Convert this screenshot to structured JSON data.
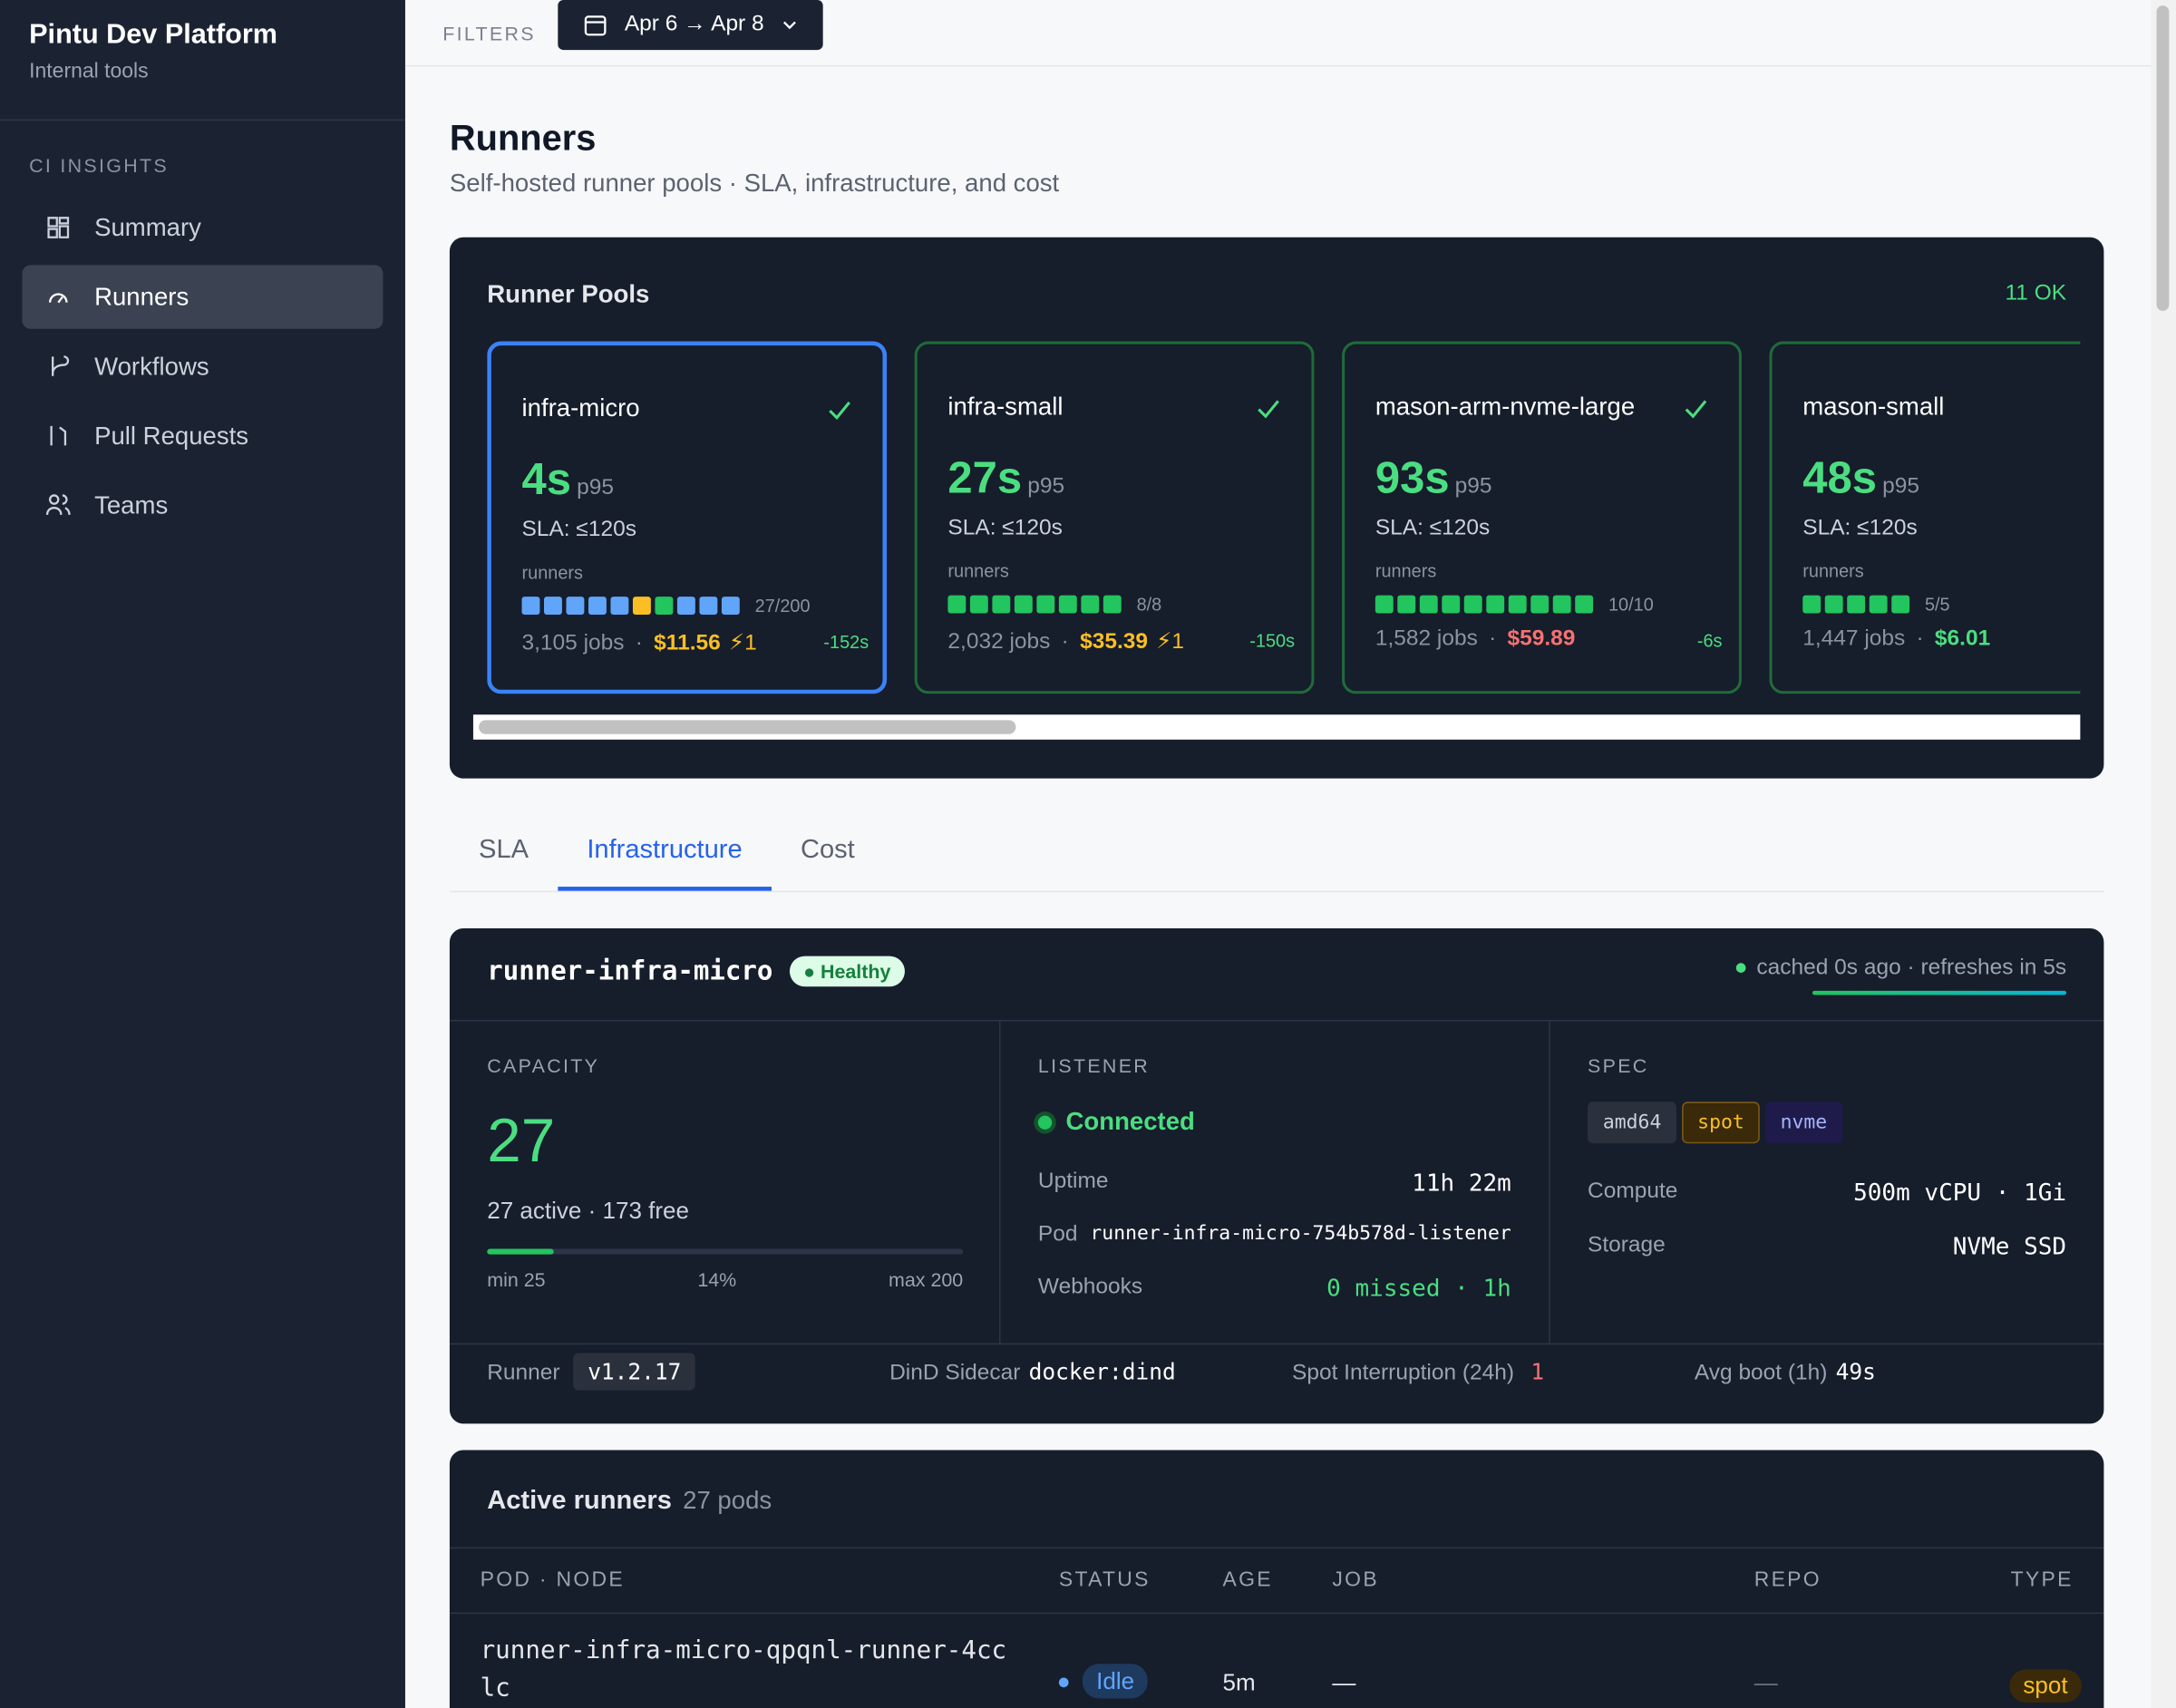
{
  "sidebar": {
    "title": "Pintu Dev Platform",
    "subtitle": "Internal tools",
    "section": "CI INSIGHTS",
    "nav": [
      "Summary",
      "Runners",
      "Workflows",
      "Pull Requests",
      "Teams"
    ],
    "active": 1
  },
  "topbar": {
    "filters_label": "FILTERS",
    "date_range": "Apr 6 → Apr 8"
  },
  "header": {
    "title": "Runners",
    "subtitle": "Self-hosted runner pools · SLA, infrastructure, and cost"
  },
  "pools": {
    "title": "Runner Pools",
    "status": "11 OK",
    "cards": [
      {
        "name": "infra-micro",
        "p95": "4s",
        "p95_label": "p95",
        "sla": "SLA: ≤120s",
        "runners_label": "runners",
        "dots": [
          "#60a5fa",
          "#60a5fa",
          "#60a5fa",
          "#60a5fa",
          "#60a5fa",
          "#fbbf24",
          "#22c55e",
          "#60a5fa",
          "#60a5fa",
          "#60a5fa"
        ],
        "count": "27/200",
        "jobs": "3,105 jobs",
        "cost": "$11.56",
        "cost_color": "#fbbf24",
        "spot": "⚡1",
        "trend": "-152s"
      },
      {
        "name": "infra-small",
        "p95": "27s",
        "p95_label": "p95",
        "sla": "SLA: ≤120s",
        "runners_label": "runners",
        "dots": [
          "#22c55e",
          "#22c55e",
          "#22c55e",
          "#22c55e",
          "#22c55e",
          "#22c55e",
          "#22c55e",
          "#22c55e"
        ],
        "count": "8/8",
        "jobs": "2,032 jobs",
        "cost": "$35.39",
        "cost_color": "#fbbf24",
        "spot": "⚡1",
        "trend": "-150s"
      },
      {
        "name": "mason-arm-nvme-large",
        "p95": "93s",
        "p95_label": "p95",
        "sla": "SLA: ≤120s",
        "runners_label": "runners",
        "dots": [
          "#22c55e",
          "#22c55e",
          "#22c55e",
          "#22c55e",
          "#22c55e",
          "#22c55e",
          "#22c55e",
          "#22c55e",
          "#22c55e",
          "#22c55e"
        ],
        "count": "10/10",
        "jobs": "1,582 jobs",
        "cost": "$59.89",
        "cost_color": "#f87171",
        "trend": "-6s"
      },
      {
        "name": "mason-small",
        "p95": "48s",
        "p95_label": "p95",
        "sla": "SLA: ≤120s",
        "runners_label": "runners",
        "dots": [
          "#22c55e",
          "#22c55e",
          "#22c55e",
          "#22c55e",
          "#22c55e"
        ],
        "count": "5/5",
        "jobs": "1,447 jobs",
        "cost": "$6.01",
        "cost_color": "#4ade80"
      }
    ]
  },
  "tabs": [
    "SLA",
    "Infrastructure",
    "Cost"
  ],
  "detail": {
    "name": "runner-infra-micro",
    "badge": "Healthy",
    "cache": "cached 0s ago · refreshes in 5s",
    "capacity": {
      "label": "CAPACITY",
      "value": "27",
      "summary": "27 active · 173 free",
      "utilization": {
        "value": 14,
        "label": "14%"
      },
      "min": "min 25",
      "max": "max 200"
    },
    "listener": {
      "label": "LISTENER",
      "status": "Connected",
      "rows": [
        [
          "Uptime",
          "11h 22m"
        ],
        [
          "Pod",
          "runner-infra-micro-754b578d-listener"
        ],
        [
          "Webhooks",
          "0 missed · 1h"
        ]
      ]
    },
    "spec": {
      "label": "SPEC",
      "tags": [
        "amd64",
        "spot",
        "nvme"
      ],
      "rows": [
        [
          "Compute",
          "500m vCPU · 1Gi"
        ],
        [
          "Storage",
          "NVMe SSD"
        ]
      ]
    },
    "footer": [
      [
        "Runner",
        "v1.2.17"
      ],
      [
        "DinD Sidecar",
        "docker:dind"
      ],
      [
        "Spot Interruption (24h)",
        "1"
      ],
      [
        "Avg boot (1h)",
        "49s"
      ]
    ]
  },
  "active_runners": {
    "title": "Active runners",
    "count": "27 pods",
    "columns": [
      "POD · NODE",
      "STATUS",
      "AGE",
      "JOB",
      "REPO",
      "TYPE"
    ],
    "rows": [
      [
        "runner-infra-micro-qpqnl-runner-4cclc",
        "Idle",
        "5m",
        "—",
        "—",
        "spot"
      ]
    ]
  }
}
